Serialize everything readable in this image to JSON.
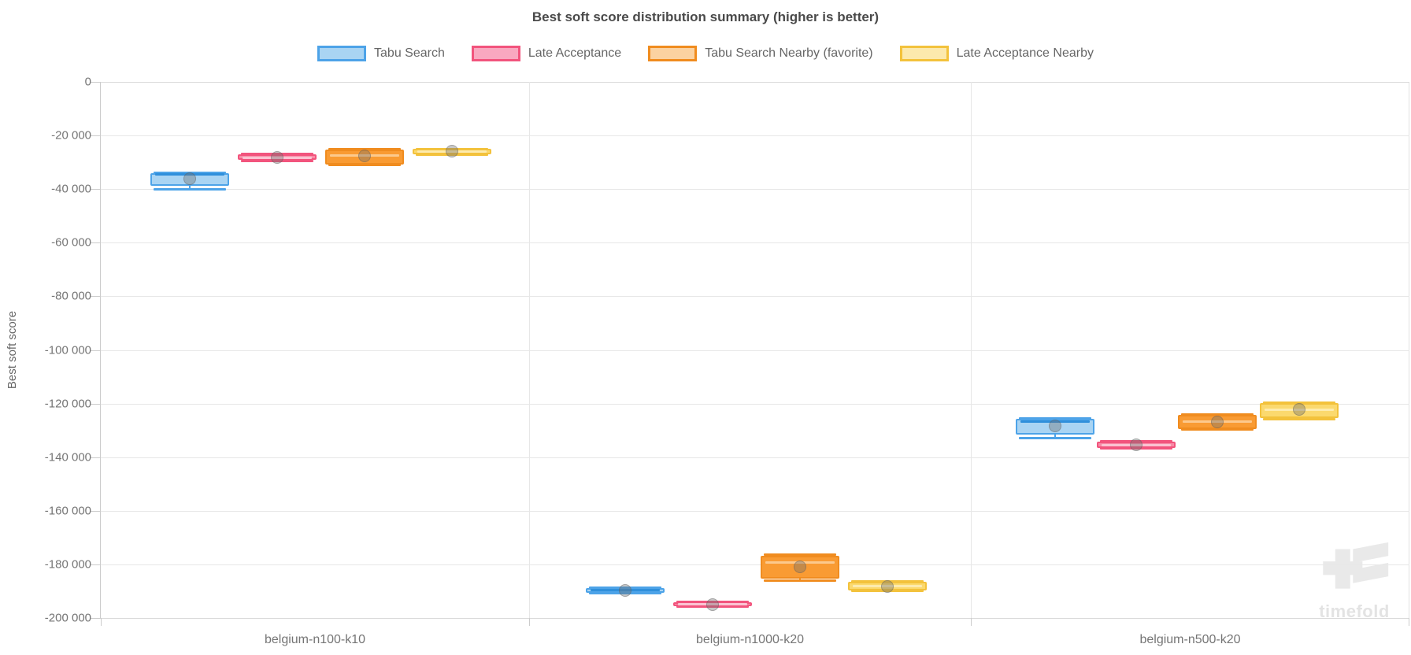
{
  "title": "Best soft score distribution summary (higher is better)",
  "watermark_text": "timefold",
  "colors": {
    "gridline": "#e7e7e7",
    "axis": "#cccccc",
    "tick_text": "#757575",
    "title_text": "#4a4a4a",
    "legend_text": "#666666",
    "mean_dot": "#6e6e6e",
    "watermark": "#e9e9e9"
  },
  "axes": {
    "y_title": "Best soft score",
    "y_tick_labels": [
      "0",
      "-20 000",
      "-40 000",
      "-60 000",
      "-80 000",
      "-100 000",
      "-120 000",
      "-140 000",
      "-160 000",
      "-180 000",
      "-200 000"
    ],
    "x_categories": [
      "belgium-n100-k10",
      "belgium-n1000-k20",
      "belgium-n500-k20"
    ]
  },
  "chart_data": {
    "type": "boxplot",
    "title": "Best soft score distribution summary (higher is better)",
    "ylabel": "Best soft score",
    "ylim": [
      -200000,
      0
    ],
    "grid": true,
    "legend_position": "top",
    "categories": [
      "belgium-n100-k10",
      "belgium-n1000-k20",
      "belgium-n500-k20"
    ],
    "series": [
      {
        "name": "Tabu Search",
        "border": "#4da3e8",
        "box_fill": "#a9d4f3",
        "legend_fill": "#a9d4f3",
        "median_color": "#2f8fdb",
        "boxes": [
          {
            "min": -40000,
            "q1": -38800,
            "median": -34600,
            "q3": -34000,
            "max": -33800,
            "mean": -36200
          },
          {
            "min": -190800,
            "q1": -190600,
            "median": -189500,
            "q3": -188800,
            "max": -188600,
            "mean": -189700
          },
          {
            "min": -133000,
            "q1": -131600,
            "median": -126600,
            "q3": -125700,
            "max": -125500,
            "mean": -128300
          }
        ]
      },
      {
        "name": "Late Acceptance",
        "border": "#f2547d",
        "box_fill": "#f78ba6",
        "legend_fill": "#f9a8c0",
        "median_color": "#fbc3d2",
        "boxes": [
          {
            "min": -29400,
            "q1": -29200,
            "median": -28200,
            "q3": -27100,
            "max": -27000,
            "mean": -28300
          },
          {
            "min": -195800,
            "q1": -195600,
            "median": -194800,
            "q3": -194100,
            "max": -194000,
            "mean": -194900
          },
          {
            "min": -136800,
            "q1": -136600,
            "median": -135400,
            "q3": -134200,
            "max": -134100,
            "mean": -135400
          }
        ]
      },
      {
        "name": "Tabu Search Nearby (favorite)",
        "border": "#f08c1f",
        "box_fill": "#f99b33",
        "legend_fill": "#fbd2a1",
        "median_color": "#fcc98d",
        "boxes": [
          {
            "min": -31000,
            "q1": -30700,
            "median": -27600,
            "q3": -25400,
            "max": -25200,
            "mean": -27700
          },
          {
            "min": -186000,
            "q1": -185300,
            "median": -179400,
            "q3": -176700,
            "max": -176300,
            "mean": -180900
          },
          {
            "min": -129800,
            "q1": -129500,
            "median": -126800,
            "q3": -124200,
            "max": -124000,
            "mean": -126900
          }
        ]
      },
      {
        "name": "Late Acceptance Nearby",
        "border": "#f3c23c",
        "box_fill": "#fbd96e",
        "legend_fill": "#fce9ad",
        "median_color": "#fdebae",
        "boxes": [
          {
            "min": -27300,
            "q1": -27100,
            "median": -25900,
            "q3": -25100,
            "max": -25000,
            "mean": -25900
          },
          {
            "min": -190000,
            "q1": -189700,
            "median": -188100,
            "q3": -186400,
            "max": -186300,
            "mean": -188200
          },
          {
            "min": -125700,
            "q1": -125400,
            "median": -122200,
            "q3": -119800,
            "max": -119600,
            "mean": -122100
          }
        ]
      }
    ]
  }
}
